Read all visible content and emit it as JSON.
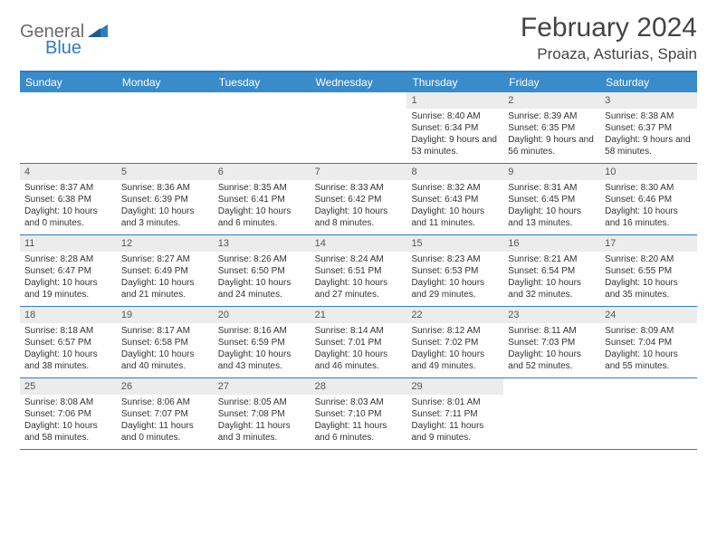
{
  "logo": {
    "text1": "General",
    "text2": "Blue"
  },
  "title": "February 2024",
  "location": "Proaza, Asturias, Spain",
  "colors": {
    "header_bg": "#3a8bc9",
    "border": "#2f7bbf",
    "daynum_bg": "#ececec",
    "text": "#333333",
    "logo_gray": "#6a6a6a",
    "logo_blue": "#2f7bbf"
  },
  "weekdays": [
    "Sunday",
    "Monday",
    "Tuesday",
    "Wednesday",
    "Thursday",
    "Friday",
    "Saturday"
  ],
  "weeks": [
    [
      {
        "n": "",
        "sr": "",
        "ss": "",
        "dl": ""
      },
      {
        "n": "",
        "sr": "",
        "ss": "",
        "dl": ""
      },
      {
        "n": "",
        "sr": "",
        "ss": "",
        "dl": ""
      },
      {
        "n": "",
        "sr": "",
        "ss": "",
        "dl": ""
      },
      {
        "n": "1",
        "sr": "Sunrise: 8:40 AM",
        "ss": "Sunset: 6:34 PM",
        "dl": "Daylight: 9 hours and 53 minutes."
      },
      {
        "n": "2",
        "sr": "Sunrise: 8:39 AM",
        "ss": "Sunset: 6:35 PM",
        "dl": "Daylight: 9 hours and 56 minutes."
      },
      {
        "n": "3",
        "sr": "Sunrise: 8:38 AM",
        "ss": "Sunset: 6:37 PM",
        "dl": "Daylight: 9 hours and 58 minutes."
      }
    ],
    [
      {
        "n": "4",
        "sr": "Sunrise: 8:37 AM",
        "ss": "Sunset: 6:38 PM",
        "dl": "Daylight: 10 hours and 0 minutes."
      },
      {
        "n": "5",
        "sr": "Sunrise: 8:36 AM",
        "ss": "Sunset: 6:39 PM",
        "dl": "Daylight: 10 hours and 3 minutes."
      },
      {
        "n": "6",
        "sr": "Sunrise: 8:35 AM",
        "ss": "Sunset: 6:41 PM",
        "dl": "Daylight: 10 hours and 6 minutes."
      },
      {
        "n": "7",
        "sr": "Sunrise: 8:33 AM",
        "ss": "Sunset: 6:42 PM",
        "dl": "Daylight: 10 hours and 8 minutes."
      },
      {
        "n": "8",
        "sr": "Sunrise: 8:32 AM",
        "ss": "Sunset: 6:43 PM",
        "dl": "Daylight: 10 hours and 11 minutes."
      },
      {
        "n": "9",
        "sr": "Sunrise: 8:31 AM",
        "ss": "Sunset: 6:45 PM",
        "dl": "Daylight: 10 hours and 13 minutes."
      },
      {
        "n": "10",
        "sr": "Sunrise: 8:30 AM",
        "ss": "Sunset: 6:46 PM",
        "dl": "Daylight: 10 hours and 16 minutes."
      }
    ],
    [
      {
        "n": "11",
        "sr": "Sunrise: 8:28 AM",
        "ss": "Sunset: 6:47 PM",
        "dl": "Daylight: 10 hours and 19 minutes."
      },
      {
        "n": "12",
        "sr": "Sunrise: 8:27 AM",
        "ss": "Sunset: 6:49 PM",
        "dl": "Daylight: 10 hours and 21 minutes."
      },
      {
        "n": "13",
        "sr": "Sunrise: 8:26 AM",
        "ss": "Sunset: 6:50 PM",
        "dl": "Daylight: 10 hours and 24 minutes."
      },
      {
        "n": "14",
        "sr": "Sunrise: 8:24 AM",
        "ss": "Sunset: 6:51 PM",
        "dl": "Daylight: 10 hours and 27 minutes."
      },
      {
        "n": "15",
        "sr": "Sunrise: 8:23 AM",
        "ss": "Sunset: 6:53 PM",
        "dl": "Daylight: 10 hours and 29 minutes."
      },
      {
        "n": "16",
        "sr": "Sunrise: 8:21 AM",
        "ss": "Sunset: 6:54 PM",
        "dl": "Daylight: 10 hours and 32 minutes."
      },
      {
        "n": "17",
        "sr": "Sunrise: 8:20 AM",
        "ss": "Sunset: 6:55 PM",
        "dl": "Daylight: 10 hours and 35 minutes."
      }
    ],
    [
      {
        "n": "18",
        "sr": "Sunrise: 8:18 AM",
        "ss": "Sunset: 6:57 PM",
        "dl": "Daylight: 10 hours and 38 minutes."
      },
      {
        "n": "19",
        "sr": "Sunrise: 8:17 AM",
        "ss": "Sunset: 6:58 PM",
        "dl": "Daylight: 10 hours and 40 minutes."
      },
      {
        "n": "20",
        "sr": "Sunrise: 8:16 AM",
        "ss": "Sunset: 6:59 PM",
        "dl": "Daylight: 10 hours and 43 minutes."
      },
      {
        "n": "21",
        "sr": "Sunrise: 8:14 AM",
        "ss": "Sunset: 7:01 PM",
        "dl": "Daylight: 10 hours and 46 minutes."
      },
      {
        "n": "22",
        "sr": "Sunrise: 8:12 AM",
        "ss": "Sunset: 7:02 PM",
        "dl": "Daylight: 10 hours and 49 minutes."
      },
      {
        "n": "23",
        "sr": "Sunrise: 8:11 AM",
        "ss": "Sunset: 7:03 PM",
        "dl": "Daylight: 10 hours and 52 minutes."
      },
      {
        "n": "24",
        "sr": "Sunrise: 8:09 AM",
        "ss": "Sunset: 7:04 PM",
        "dl": "Daylight: 10 hours and 55 minutes."
      }
    ],
    [
      {
        "n": "25",
        "sr": "Sunrise: 8:08 AM",
        "ss": "Sunset: 7:06 PM",
        "dl": "Daylight: 10 hours and 58 minutes."
      },
      {
        "n": "26",
        "sr": "Sunrise: 8:06 AM",
        "ss": "Sunset: 7:07 PM",
        "dl": "Daylight: 11 hours and 0 minutes."
      },
      {
        "n": "27",
        "sr": "Sunrise: 8:05 AM",
        "ss": "Sunset: 7:08 PM",
        "dl": "Daylight: 11 hours and 3 minutes."
      },
      {
        "n": "28",
        "sr": "Sunrise: 8:03 AM",
        "ss": "Sunset: 7:10 PM",
        "dl": "Daylight: 11 hours and 6 minutes."
      },
      {
        "n": "29",
        "sr": "Sunrise: 8:01 AM",
        "ss": "Sunset: 7:11 PM",
        "dl": "Daylight: 11 hours and 9 minutes."
      },
      {
        "n": "",
        "sr": "",
        "ss": "",
        "dl": ""
      },
      {
        "n": "",
        "sr": "",
        "ss": "",
        "dl": ""
      }
    ]
  ]
}
